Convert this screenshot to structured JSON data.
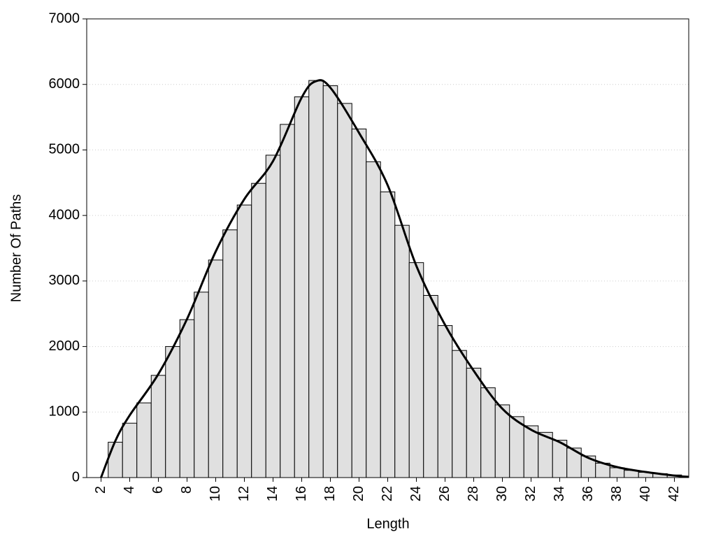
{
  "chart_data": {
    "type": "histogram",
    "xlabel": "Length",
    "ylabel": "Number Of Paths",
    "bins": [
      2.5,
      3.5,
      4.5,
      5.5,
      6.5,
      7.5,
      8.5,
      9.5,
      10.5,
      11.5,
      12.5,
      13.5,
      14.5,
      15.5,
      16.5,
      17.5,
      18.5,
      19.5,
      20.5,
      21.5,
      22.5,
      23.5,
      24.5,
      25.5,
      26.5,
      27.5,
      28.5,
      29.5,
      30.5,
      31.5,
      32.5,
      33.5,
      34.5,
      35.5,
      36.5,
      37.5,
      38.5,
      39.5,
      40.5,
      41.5,
      42.5
    ],
    "values": [
      540,
      830,
      1140,
      1560,
      2000,
      2410,
      2830,
      3320,
      3780,
      4160,
      4490,
      4920,
      5390,
      5810,
      6060,
      5980,
      5710,
      5320,
      4820,
      4360,
      3850,
      3280,
      2780,
      2320,
      1940,
      1670,
      1370,
      1110,
      930,
      790,
      690,
      570,
      450,
      330,
      220,
      150,
      110,
      80,
      60,
      40
    ],
    "color": "#e0e0e0",
    "curve": {
      "type": "line",
      "color": "#000000",
      "x": [
        2,
        3,
        4,
        6,
        8,
        10,
        12,
        14,
        16,
        17,
        18,
        20,
        22,
        24,
        26,
        28,
        30,
        32,
        34,
        36,
        38,
        40,
        42,
        43
      ],
      "values": [
        0,
        560,
        950,
        1580,
        2420,
        3450,
        4250,
        4830,
        5800,
        6050,
        5950,
        5260,
        4460,
        3230,
        2330,
        1630,
        1050,
        730,
        540,
        300,
        160,
        85,
        30,
        10
      ]
    },
    "xlim": [
      1,
      43
    ],
    "ylim": [
      0,
      7000
    ],
    "xticks": [
      2,
      4,
      6,
      8,
      10,
      12,
      14,
      16,
      18,
      20,
      22,
      24,
      26,
      28,
      30,
      32,
      34,
      36,
      38,
      40,
      42
    ],
    "yticks": [
      0,
      1000,
      2000,
      3000,
      4000,
      5000,
      6000,
      7000
    ],
    "grid": true
  }
}
